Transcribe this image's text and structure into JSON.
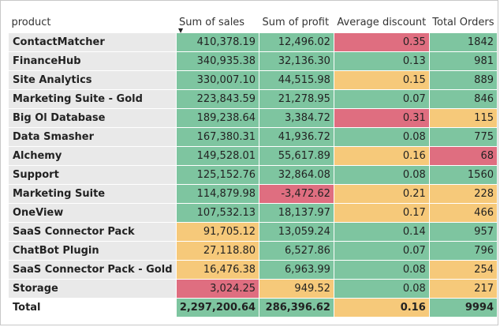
{
  "colors": {
    "green": "#7ec5a0",
    "yellow": "#f6c97a",
    "red": "#df6e80",
    "label_bg": "#e9e9e9"
  },
  "headers": {
    "product": "product",
    "sales": "Sum of sales",
    "profit": "Sum of profit",
    "discount": "Average discount",
    "orders": "Total Orders"
  },
  "sort_icon": "sort-descending-icon",
  "rows": [
    {
      "product": "ContactMatcher",
      "sales": "410,378.19",
      "profit": "12,496.02",
      "discount": "0.35",
      "orders": "1842",
      "c": [
        "green",
        "green",
        "red",
        "green"
      ]
    },
    {
      "product": "FinanceHub",
      "sales": "340,935.38",
      "profit": "32,136.30",
      "discount": "0.13",
      "orders": "981",
      "c": [
        "green",
        "green",
        "green",
        "green"
      ]
    },
    {
      "product": "Site Analytics",
      "sales": "330,007.10",
      "profit": "44,515.98",
      "discount": "0.15",
      "orders": "889",
      "c": [
        "green",
        "green",
        "yellow",
        "green"
      ]
    },
    {
      "product": "Marketing Suite - Gold",
      "sales": "223,843.59",
      "profit": "21,278.95",
      "discount": "0.07",
      "orders": "846",
      "c": [
        "green",
        "green",
        "green",
        "green"
      ]
    },
    {
      "product": "Big Ol Database",
      "sales": "189,238.64",
      "profit": "3,384.72",
      "discount": "0.31",
      "orders": "115",
      "c": [
        "green",
        "green",
        "red",
        "yellow"
      ]
    },
    {
      "product": "Data Smasher",
      "sales": "167,380.31",
      "profit": "41,936.72",
      "discount": "0.08",
      "orders": "775",
      "c": [
        "green",
        "green",
        "green",
        "green"
      ]
    },
    {
      "product": "Alchemy",
      "sales": "149,528.01",
      "profit": "55,617.89",
      "discount": "0.16",
      "orders": "68",
      "c": [
        "green",
        "green",
        "yellow",
        "red"
      ]
    },
    {
      "product": "Support",
      "sales": "125,152.76",
      "profit": "32,864.08",
      "discount": "0.08",
      "orders": "1560",
      "c": [
        "green",
        "green",
        "green",
        "green"
      ]
    },
    {
      "product": "Marketing Suite",
      "sales": "114,879.98",
      "profit": "-3,472.62",
      "discount": "0.21",
      "orders": "228",
      "c": [
        "green",
        "red",
        "yellow",
        "yellow"
      ]
    },
    {
      "product": "OneView",
      "sales": "107,532.13",
      "profit": "18,137.97",
      "discount": "0.17",
      "orders": "466",
      "c": [
        "green",
        "green",
        "yellow",
        "yellow"
      ]
    },
    {
      "product": "SaaS Connector Pack",
      "sales": "91,705.12",
      "profit": "13,059.24",
      "discount": "0.14",
      "orders": "957",
      "c": [
        "yellow",
        "green",
        "green",
        "green"
      ]
    },
    {
      "product": "ChatBot Plugin",
      "sales": "27,118.80",
      "profit": "6,527.86",
      "discount": "0.07",
      "orders": "796",
      "c": [
        "yellow",
        "green",
        "green",
        "green"
      ]
    },
    {
      "product": "SaaS Connector Pack - Gold",
      "sales": "16,476.38",
      "profit": "6,963.99",
      "discount": "0.08",
      "orders": "254",
      "c": [
        "yellow",
        "green",
        "green",
        "yellow"
      ]
    },
    {
      "product": "Storage",
      "sales": "3,024.25",
      "profit": "949.52",
      "discount": "0.08",
      "orders": "217",
      "c": [
        "red",
        "yellow",
        "green",
        "yellow"
      ]
    }
  ],
  "total": {
    "product": "Total",
    "sales": "2,297,200.64",
    "profit": "286,396.62",
    "discount": "0.16",
    "orders": "9994",
    "c": [
      "green",
      "green",
      "yellow",
      "green"
    ]
  }
}
